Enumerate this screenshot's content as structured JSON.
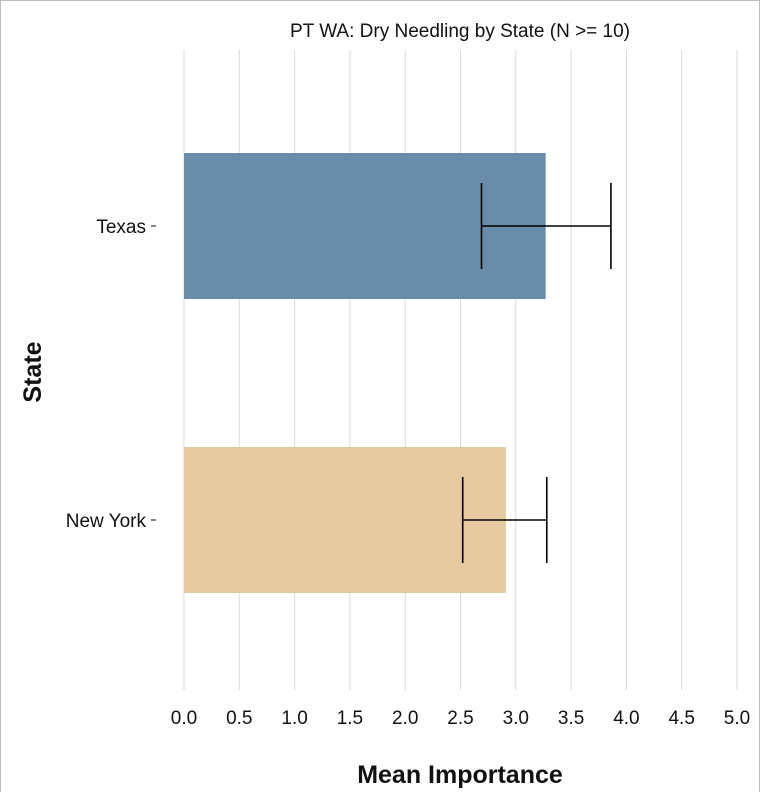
{
  "chart_data": {
    "type": "bar",
    "orientation": "horizontal",
    "title": "PT WA: Dry Needling by State (N >= 10)",
    "xlabel": "Mean Importance",
    "ylabel": "State",
    "categories": [
      "Texas",
      "New York"
    ],
    "values": [
      3.27,
      2.91
    ],
    "error_low": [
      2.69,
      2.52
    ],
    "error_high": [
      3.86,
      3.28
    ],
    "colors": [
      "#6a8ca8",
      "#e5c9a1"
    ],
    "xlim": [
      0,
      5
    ],
    "xticks": [
      "0.0",
      "0.5",
      "1.0",
      "1.5",
      "2.0",
      "2.5",
      "3.0",
      "3.5",
      "4.0",
      "4.5",
      "5.0"
    ],
    "grid": "vertical"
  }
}
